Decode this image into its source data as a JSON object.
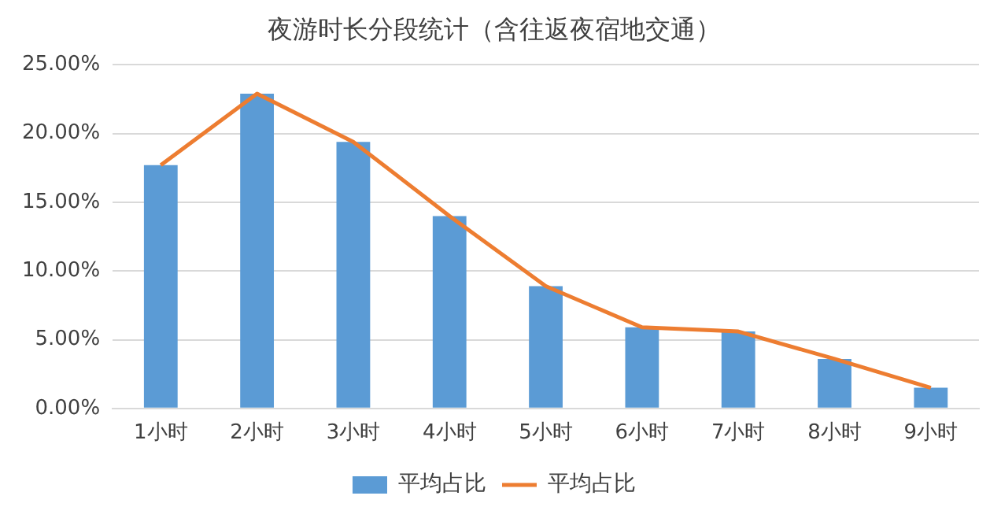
{
  "chart_data": {
    "type": "bar",
    "title": "夜游时长分段统计（含往返夜宿地交通）",
    "categories": [
      "1小时",
      "2小时",
      "3小时",
      "4小时",
      "5小时",
      "6小时",
      "7小时",
      "8小时",
      "9小时"
    ],
    "series": [
      {
        "name": "平均占比",
        "color": "#5b9bd5",
        "values": [
          17.7,
          22.9,
          19.4,
          14.0,
          8.9,
          5.9,
          5.6,
          3.6,
          1.5
        ]
      },
      {
        "name": "平均占比",
        "type": "line",
        "color": "#ed7d31",
        "values": [
          17.7,
          22.9,
          19.4,
          14.0,
          8.9,
          5.9,
          5.6,
          3.6,
          1.5
        ]
      }
    ],
    "ylim": [
      0,
      25
    ],
    "yticks": [
      {
        "value": 0,
        "label": "0.00%"
      },
      {
        "value": 5,
        "label": "5.00%"
      },
      {
        "value": 10,
        "label": "10.00%"
      },
      {
        "value": 15,
        "label": "15.00%"
      },
      {
        "value": 20,
        "label": "20.00%"
      },
      {
        "value": 25,
        "label": "25.00%"
      }
    ],
    "grid": "y",
    "legend": "bottom",
    "marker": "none"
  }
}
